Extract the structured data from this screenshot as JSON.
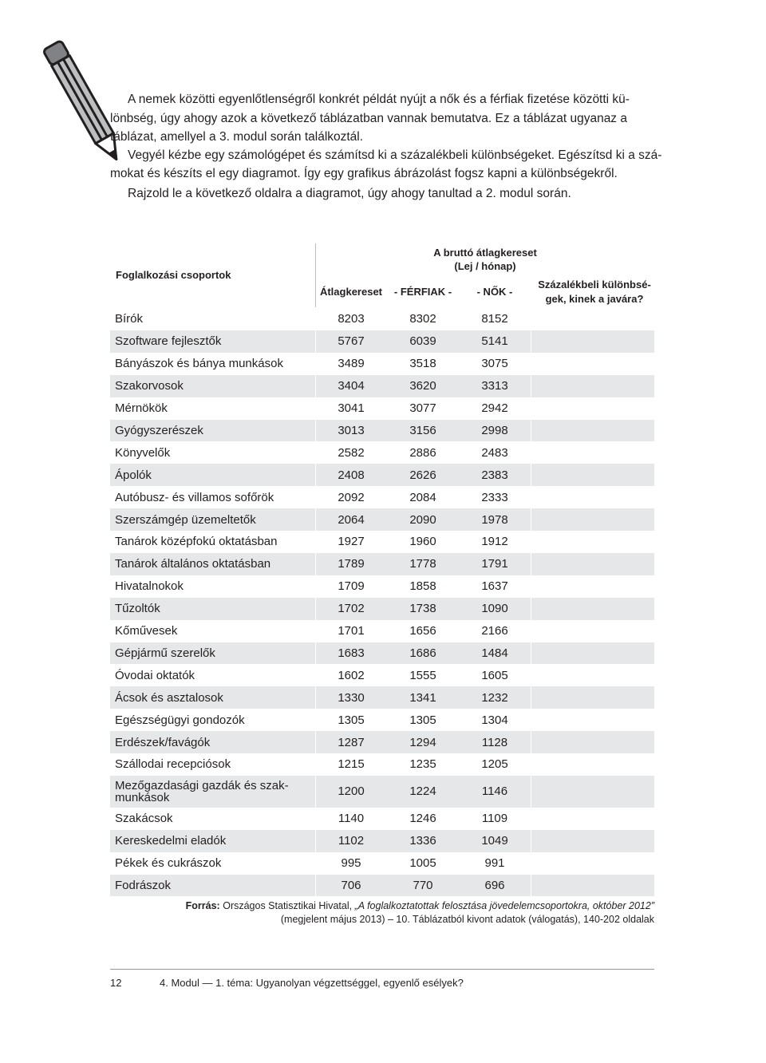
{
  "intro": {
    "lines": [
      "A nemek közötti egyenlőtlenségről konkrét példát nyújt a nők és a férfiak fizetése közötti kü-",
      "lönbség, úgy ahogy azok a következő táblázatban vannak bemutatva. Ez a táblázat ugyanaz a",
      "táblázat, amellyel a 3. modul során találkoztál.",
      "Vegyél kézbe egy számológépet és számítsd ki a százalékbeli különbségeket. Egészítsd ki a szá-",
      "mokat és készíts el egy diagramot. Így egy grafikus ábrázolást fogsz kapni a különbségekről.",
      "Rajzold le a következő oldalra a diagramot, úgy ahogy tanultad a 2. modul során."
    ]
  },
  "table": {
    "header": {
      "group": "Foglalkozási csoportok",
      "wage_title": [
        "A bruttó átlagkereset",
        "(Lej / hónap)"
      ],
      "columns": [
        "Átlagkereset",
        "- FÉRFIAK -",
        "- NŐK -"
      ],
      "diff": [
        "Százalékbeli különbsé-",
        "gek, kinek a javára?"
      ]
    },
    "rows": [
      [
        "Bírók",
        8203,
        8302,
        8152
      ],
      [
        "Szoftware fejlesztők",
        5767,
        6039,
        5141
      ],
      [
        "Bányászok és bánya munkások",
        3489,
        3518,
        3075
      ],
      [
        "Szakorvosok",
        3404,
        3620,
        3313
      ],
      [
        "Mérnökök",
        3041,
        3077,
        2942
      ],
      [
        "Gyógyszerészek",
        3013,
        3156,
        2998
      ],
      [
        "Könyvelők",
        2582,
        2886,
        2483
      ],
      [
        "Ápolók",
        2408,
        2626,
        2383
      ],
      [
        "Autóbusz- és villamos sofőrök",
        2092,
        2084,
        2333
      ],
      [
        "Szerszámgép üzemeltetők",
        2064,
        2090,
        1978
      ],
      [
        "Tanárok középfokú oktatásban",
        1927,
        1960,
        1912
      ],
      [
        "Tanárok általános oktatásban",
        1789,
        1778,
        1791
      ],
      [
        "Hivatalnokok",
        1709,
        1858,
        1637
      ],
      [
        "Tűzoltók",
        1702,
        1738,
        1090
      ],
      [
        "Kőművesek",
        1701,
        1656,
        2166
      ],
      [
        "Gépjármű szerelők",
        1683,
        1686,
        1484
      ],
      [
        "Óvodai oktatók",
        1602,
        1555,
        1605
      ],
      [
        "Ácsok és asztalosok",
        1330,
        1341,
        1232
      ],
      [
        "Egészségügyi gondozók",
        1305,
        1305,
        1304
      ],
      [
        "Erdészek/favágók",
        1287,
        1294,
        1128
      ],
      [
        "Szállodai recepciósok",
        1215,
        1235,
        1205
      ],
      [
        "Mezőgazdasági gazdák és szak-\nmunkások",
        1200,
        1224,
        1146
      ],
      [
        "Szakácsok",
        1140,
        1246,
        1109
      ],
      [
        "Kereskedelmi eladók",
        1102,
        1336,
        1049
      ],
      [
        "Pékek és cukrászok",
        995,
        1005,
        991
      ],
      [
        "Fodrászok",
        706,
        770,
        696
      ]
    ]
  },
  "source": {
    "label": "Forrás:",
    "text": "Országos Statisztikai Hivatal, ",
    "title": "„A foglalkoztatottak felosztása jövedelemcsoportokra, október 2012”",
    "line2": "(megjelent május 2013) – 10. Táblázatból kivont adatok (válogatás), 140-202 oldalak"
  },
  "footer": {
    "page": "12",
    "text": "4. Modul — 1. téma: Ugyanolyan végzettséggel, egyenlő esélyek?"
  }
}
